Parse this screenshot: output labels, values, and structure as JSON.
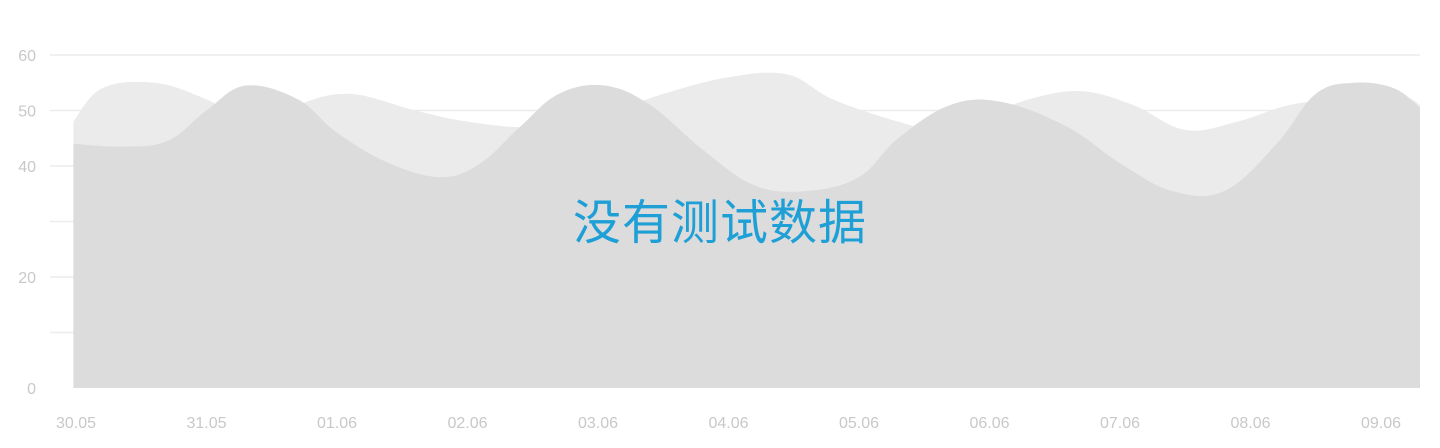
{
  "overlay": {
    "message": "没有测试数据"
  },
  "chart_data": {
    "type": "area",
    "categories": [
      "30.05",
      "31.05",
      "01.06",
      "02.06",
      "03.06",
      "04.06",
      "05.06",
      "06.06",
      "07.06",
      "08.06",
      "09.06"
    ],
    "y_ticks": [
      0,
      20,
      40,
      50,
      60
    ],
    "ylim": [
      0,
      60
    ],
    "grid": true,
    "series": [
      {
        "x": [
          -0.02,
          0.2,
          0.6,
          1.0,
          1.4,
          1.7,
          2.1,
          2.6,
          3.0,
          3.5,
          4.0,
          4.5,
          5.0,
          5.45,
          5.8,
          6.3,
          6.7,
          7.0,
          7.3,
          7.7,
          8.1,
          8.5,
          8.9,
          9.3,
          9.7,
          10.15,
          10.48
        ],
        "values": [
          48,
          54,
          55,
          52,
          47,
          51,
          53,
          50,
          48,
          47,
          49,
          53,
          56,
          56.5,
          52,
          48,
          46,
          49,
          52,
          53.5,
          51,
          46.5,
          48,
          51,
          52,
          52.5,
          51
        ],
        "color": "#ebebeb"
      },
      {
        "x": [
          -0.02,
          0.35,
          0.7,
          1.0,
          1.3,
          1.7,
          2.0,
          2.4,
          2.8,
          3.1,
          3.4,
          3.7,
          4.05,
          4.4,
          4.8,
          5.2,
          5.6,
          6.0,
          6.3,
          6.7,
          7.1,
          7.6,
          8.0,
          8.4,
          8.8,
          9.2,
          9.5,
          9.8,
          10.1,
          10.48
        ],
        "values": [
          44,
          43.5,
          44.5,
          50,
          54.5,
          52,
          46,
          40.5,
          38,
          40.5,
          47,
          53,
          54.5,
          51,
          43,
          36.5,
          35.5,
          38,
          45,
          51,
          51.5,
          47,
          40.5,
          35.5,
          35.5,
          44,
          53,
          55,
          54,
          50.5
        ],
        "color": "#dcdcdc"
      }
    ]
  }
}
